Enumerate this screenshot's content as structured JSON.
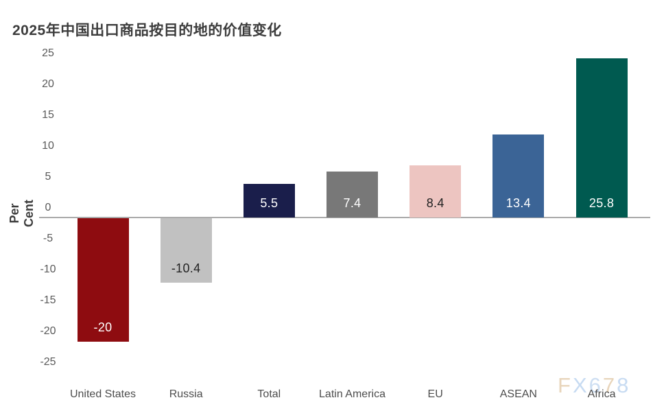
{
  "title": "2025年中国出口商品按目的地的价值变化",
  "watermark": {
    "text": "FX678",
    "letters": [
      {
        "char": "F",
        "color": "#e8d5bb"
      },
      {
        "char": "X",
        "color": "#c7dbf2"
      },
      {
        "char": "6",
        "color": "#cddef2"
      },
      {
        "char": "7",
        "color": "#e8d5bb"
      },
      {
        "char": "8",
        "color": "#c7dbf2"
      }
    ]
  },
  "chart_data": {
    "type": "bar",
    "title": "2025年中国出口商品按目的地的价值变化",
    "ylabel": "Per Cent",
    "xlabel": "",
    "ylim": [
      -25,
      25
    ],
    "yticks": [
      25,
      20,
      15,
      10,
      5,
      0,
      -5,
      -10,
      -15,
      -20,
      -25
    ],
    "grid": false,
    "legend": false,
    "zero_baseline": true,
    "categories": [
      "United States",
      "Russia",
      "Total",
      "Latin America",
      "EU",
      "ASEAN",
      "Africa"
    ],
    "values": [
      -20,
      -10.4,
      5.5,
      7.4,
      8.4,
      13.4,
      25.8
    ],
    "data_labels": [
      "-20",
      "-10.4",
      "5.5",
      "7.4",
      "8.4",
      "13.4",
      "25.8"
    ],
    "bar_colors": [
      "#8e0c10",
      "#c1c1c1",
      "#1a1e4b",
      "#787878",
      "#edc5c1",
      "#3b6496",
      "#005a50"
    ],
    "data_label_colors": [
      "#ffffff",
      "#222222",
      "#ffffff",
      "#ffffff",
      "#222222",
      "#ffffff",
      "#ffffff"
    ],
    "axis_line_color": "#ababab"
  }
}
